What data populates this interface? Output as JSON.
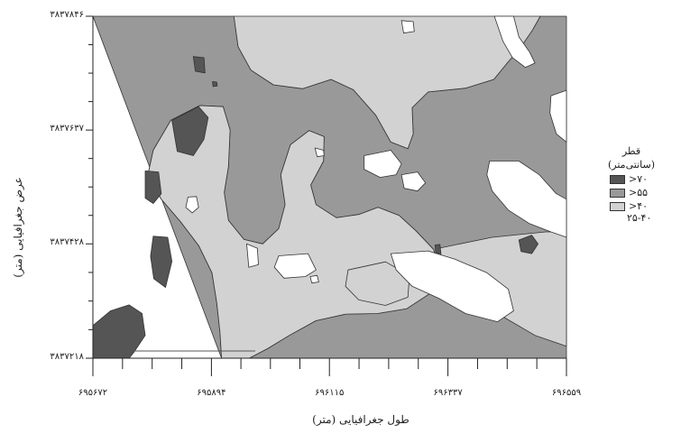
{
  "chart_data": {
    "type": "contour",
    "title": "",
    "xlabel": "طول جغرافیایی (متر)",
    "ylabel": "عرض جغرافیایی (متر)",
    "x_ticks": [
      {
        "value": 695672,
        "label": "۶۹۵۶۷۲"
      },
      {
        "value": 695894,
        "label": "۶۹۵۸۹۴"
      },
      {
        "value": 696115,
        "label": "۶۹۶۱۱۵"
      },
      {
        "value": 696337,
        "label": "۶۹۶۳۳۷"
      },
      {
        "value": 696559,
        "label": "۶۹۶۵۵۹"
      }
    ],
    "y_ticks": [
      {
        "value": 3837218,
        "label": "۳۸۳۷۲۱۸"
      },
      {
        "value": 3837428,
        "label": "۳۸۳۷۴۲۸"
      },
      {
        "value": 3837637,
        "label": "۳۸۳۷۶۳۷"
      },
      {
        "value": 3837846,
        "label": "۳۸۳۷۸۴۶"
      }
    ],
    "xlim": [
      695672,
      696559
    ],
    "ylim": [
      3837218,
      3837846
    ],
    "legend": {
      "title_line1": "قطر",
      "title_line2": "(سانتی‌متر)",
      "placement": "right",
      "levels": [
        {
          "label": ">۷۰",
          "color": "#555555"
        },
        {
          "label": ">۵۵",
          "color": "#999999"
        },
        {
          "label": ">۴۰",
          "color": "#d2d2d2"
        }
      ],
      "extra_label": "۲۵-۴۰"
    },
    "colors": {
      "lowest": "#ffffff",
      "low": "#d2d2d2",
      "mid": "#999999",
      "high": "#555555"
    },
    "regions": {
      "mid": [
        [
          [
            695672,
            3837846
          ],
          [
            695936,
            3837846
          ],
          [
            695944,
            3837790
          ],
          [
            695968,
            3837747
          ],
          [
            696010,
            3837720
          ],
          [
            696065,
            3837713
          ],
          [
            696118,
            3837730
          ],
          [
            696160,
            3837711
          ],
          [
            696202,
            3837664
          ],
          [
            696230,
            3837615
          ],
          [
            696262,
            3837603
          ],
          [
            696272,
            3837630
          ],
          [
            696270,
            3837678
          ],
          [
            696300,
            3837707
          ],
          [
            696370,
            3837714
          ],
          [
            696423,
            3837730
          ],
          [
            696448,
            3837760
          ],
          [
            696474,
            3837790
          ],
          [
            696495,
            3837820
          ],
          [
            696510,
            3837846
          ],
          [
            696559,
            3837846
          ],
          [
            696559,
            3837218
          ],
          [
            695913,
            3837218
          ],
          [
            695910,
            3837265
          ],
          [
            695904,
            3837320
          ],
          [
            695895,
            3837375
          ],
          [
            695870,
            3837425
          ],
          [
            695835,
            3837470
          ],
          [
            695800,
            3837510
          ],
          [
            695775,
            3837555
          ],
          [
            695785,
            3837600
          ],
          [
            695818,
            3837655
          ],
          [
            695872,
            3837682
          ],
          [
            695916,
            3837680
          ],
          [
            695929,
            3837637
          ],
          [
            695926,
            3837570
          ],
          [
            695918,
            3837522
          ],
          [
            695926,
            3837471
          ],
          [
            695955,
            3837436
          ],
          [
            695990,
            3837428
          ],
          [
            696020,
            3837456
          ],
          [
            696032,
            3837500
          ],
          [
            696024,
            3837555
          ],
          [
            696042,
            3837610
          ],
          [
            696077,
            3837636
          ],
          [
            696105,
            3837625
          ],
          [
            696104,
            3837580
          ],
          [
            696080,
            3837536
          ],
          [
            696090,
            3837500
          ],
          [
            696128,
            3837476
          ],
          [
            696170,
            3837482
          ],
          [
            696206,
            3837495
          ],
          [
            696246,
            3837480
          ],
          [
            696277,
            3837452
          ],
          [
            696310,
            3837418
          ],
          [
            696322,
            3837377
          ],
          [
            696302,
            3837336
          ],
          [
            696260,
            3837309
          ],
          [
            696205,
            3837300
          ],
          [
            696146,
            3837299
          ],
          [
            696090,
            3837287
          ],
          [
            696040,
            3837260
          ],
          [
            696000,
            3837236
          ],
          [
            695965,
            3837218
          ],
          [
            695913,
            3837218
          ]
        ]
      ],
      "low": [
        [
          [
            695936,
            3837846
          ],
          [
            696510,
            3837846
          ],
          [
            696495,
            3837820
          ],
          [
            696474,
            3837790
          ],
          [
            696448,
            3837760
          ],
          [
            696423,
            3837730
          ],
          [
            696370,
            3837714
          ],
          [
            696300,
            3837707
          ],
          [
            696270,
            3837678
          ],
          [
            696272,
            3837630
          ],
          [
            696262,
            3837603
          ],
          [
            696230,
            3837615
          ],
          [
            696202,
            3837664
          ],
          [
            696160,
            3837711
          ],
          [
            696118,
            3837730
          ],
          [
            696065,
            3837713
          ],
          [
            696010,
            3837720
          ],
          [
            695968,
            3837747
          ],
          [
            695944,
            3837790
          ]
        ],
        [
          [
            695913,
            3837218
          ],
          [
            695965,
            3837218
          ],
          [
            696000,
            3837236
          ],
          [
            696040,
            3837260
          ],
          [
            696090,
            3837287
          ],
          [
            696146,
            3837299
          ],
          [
            696205,
            3837300
          ],
          [
            696260,
            3837309
          ],
          [
            696302,
            3837336
          ],
          [
            696322,
            3837377
          ],
          [
            696310,
            3837418
          ],
          [
            696277,
            3837452
          ],
          [
            696246,
            3837480
          ],
          [
            696206,
            3837495
          ],
          [
            696170,
            3837482
          ],
          [
            696128,
            3837476
          ],
          [
            696090,
            3837500
          ],
          [
            696080,
            3837536
          ],
          [
            696104,
            3837580
          ],
          [
            696105,
            3837625
          ],
          [
            696077,
            3837636
          ],
          [
            696042,
            3837610
          ],
          [
            696024,
            3837555
          ],
          [
            696032,
            3837500
          ],
          [
            696020,
            3837456
          ],
          [
            695990,
            3837428
          ],
          [
            695955,
            3837436
          ],
          [
            695926,
            3837471
          ],
          [
            695918,
            3837522
          ],
          [
            695926,
            3837570
          ],
          [
            695929,
            3837637
          ],
          [
            695916,
            3837680
          ],
          [
            695872,
            3837682
          ],
          [
            695818,
            3837655
          ],
          [
            695785,
            3837600
          ],
          [
            695775,
            3837555
          ],
          [
            695800,
            3837510
          ],
          [
            695835,
            3837470
          ],
          [
            695870,
            3837425
          ],
          [
            695895,
            3837375
          ],
          [
            695904,
            3837320
          ],
          [
            695910,
            3837265
          ]
        ],
        [
          [
            696320,
            3837420
          ],
          [
            696420,
            3837440
          ],
          [
            696520,
            3837450
          ],
          [
            696559,
            3837450
          ],
          [
            696559,
            3837240
          ],
          [
            696500,
            3837260
          ],
          [
            696430,
            3837300
          ],
          [
            696380,
            3837350
          ],
          [
            696330,
            3837390
          ]
        ],
        [
          [
            696150,
            3837380
          ],
          [
            696220,
            3837395
          ],
          [
            696265,
            3837370
          ],
          [
            696262,
            3837330
          ],
          [
            696220,
            3837315
          ],
          [
            696170,
            3837325
          ],
          [
            696145,
            3837350
          ]
        ]
      ],
      "lowest": [
        [
          [
            696250,
            3837838
          ],
          [
            696272,
            3837836
          ],
          [
            696274,
            3837818
          ],
          [
            696254,
            3837815
          ]
        ],
        [
          [
            696424,
            3837846
          ],
          [
            696460,
            3837846
          ],
          [
            696470,
            3837808
          ],
          [
            696490,
            3837780
          ],
          [
            696500,
            3837760
          ],
          [
            696482,
            3837752
          ],
          [
            696458,
            3837770
          ],
          [
            696440,
            3837800
          ]
        ],
        [
          [
            696530,
            3837700
          ],
          [
            696559,
            3837710
          ],
          [
            696559,
            3837615
          ],
          [
            696540,
            3837630
          ],
          [
            696528,
            3837668
          ]
        ],
        [
          [
            696180,
            3837590
          ],
          [
            696230,
            3837600
          ],
          [
            696250,
            3837575
          ],
          [
            696240,
            3837555
          ],
          [
            696210,
            3837550
          ],
          [
            696180,
            3837565
          ]
        ],
        [
          [
            696250,
            3837555
          ],
          [
            696280,
            3837560
          ],
          [
            696295,
            3837540
          ],
          [
            696280,
            3837525
          ],
          [
            696255,
            3837530
          ]
        ],
        [
          [
            696415,
            3837580
          ],
          [
            696470,
            3837580
          ],
          [
            696508,
            3837555
          ],
          [
            696540,
            3837520
          ],
          [
            696559,
            3837510
          ],
          [
            696559,
            3837440
          ],
          [
            696530,
            3837450
          ],
          [
            696490,
            3837465
          ],
          [
            696450,
            3837490
          ],
          [
            696420,
            3837525
          ],
          [
            696410,
            3837555
          ]
        ],
        [
          [
            695850,
            3837514
          ],
          [
            695866,
            3837515
          ],
          [
            695870,
            3837495
          ],
          [
            695858,
            3837485
          ],
          [
            695846,
            3837495
          ]
        ],
        [
          [
            696088,
            3837604
          ],
          [
            696104,
            3837600
          ],
          [
            696105,
            3837590
          ],
          [
            696092,
            3837588
          ]
        ],
        [
          [
            695960,
            3837428
          ],
          [
            695980,
            3837420
          ],
          [
            695982,
            3837390
          ],
          [
            695964,
            3837385
          ]
        ],
        [
          [
            696020,
            3837406
          ],
          [
            696075,
            3837410
          ],
          [
            696090,
            3837380
          ],
          [
            696070,
            3837368
          ],
          [
            696030,
            3837365
          ],
          [
            696012,
            3837385
          ]
        ],
        [
          [
            696230,
            3837410
          ],
          [
            696300,
            3837415
          ],
          [
            696350,
            3837400
          ],
          [
            696410,
            3837375
          ],
          [
            696450,
            3837345
          ],
          [
            696460,
            3837305
          ],
          [
            696430,
            3837285
          ],
          [
            696370,
            3837300
          ],
          [
            696320,
            3837328
          ],
          [
            696270,
            3837350
          ],
          [
            696240,
            3837380
          ]
        ],
        [
          [
            696079,
            3837368
          ],
          [
            696092,
            3837370
          ],
          [
            696095,
            3837358
          ],
          [
            696082,
            3837356
          ]
        ]
      ],
      "high": [
        [
          [
            695860,
            3837772
          ],
          [
            695880,
            3837770
          ],
          [
            695882,
            3837742
          ],
          [
            695864,
            3837745
          ]
        ],
        [
          [
            695820,
            3837655
          ],
          [
            695870,
            3837680
          ],
          [
            695888,
            3837660
          ],
          [
            695880,
            3837620
          ],
          [
            695860,
            3837590
          ],
          [
            695830,
            3837598
          ]
        ],
        [
          [
            695770,
            3837562
          ],
          [
            695795,
            3837560
          ],
          [
            695800,
            3837520
          ],
          [
            695785,
            3837502
          ],
          [
            695770,
            3837512
          ]
        ],
        [
          [
            695785,
            3837442
          ],
          [
            695812,
            3837440
          ],
          [
            695820,
            3837396
          ],
          [
            695808,
            3837348
          ],
          [
            695786,
            3837364
          ],
          [
            695780,
            3837405
          ]
        ],
        [
          [
            695672,
            3837278
          ],
          [
            695705,
            3837305
          ],
          [
            695740,
            3837316
          ],
          [
            695764,
            3837300
          ],
          [
            695770,
            3837260
          ],
          [
            695748,
            3837228
          ],
          [
            695740,
            3837218
          ],
          [
            695672,
            3837218
          ]
        ],
        [
          [
            696470,
            3837435
          ],
          [
            696494,
            3837444
          ],
          [
            696506,
            3837428
          ],
          [
            696494,
            3837410
          ],
          [
            696474,
            3837414
          ]
        ],
        [
          [
            695896,
            3837726
          ],
          [
            695904,
            3837725
          ],
          [
            695905,
            3837718
          ],
          [
            695897,
            3837717
          ]
        ],
        [
          [
            696313,
            3837426
          ],
          [
            696322,
            3837427
          ],
          [
            696324,
            3837410
          ],
          [
            696314,
            3837411
          ]
        ]
      ]
    }
  }
}
